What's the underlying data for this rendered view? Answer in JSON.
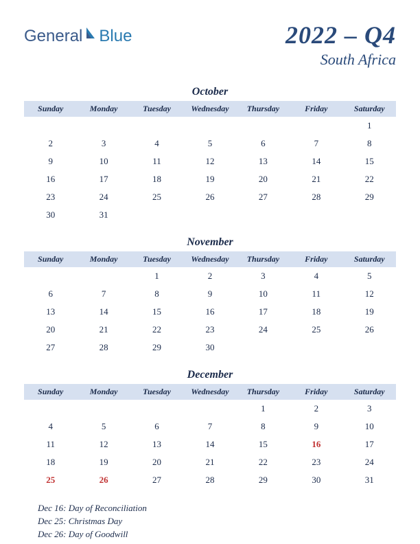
{
  "logo": {
    "part1": "General",
    "part2": "Blue"
  },
  "title": {
    "quarter": "2022 – Q4",
    "country": "South Africa"
  },
  "colors": {
    "header_bg": "#d6e0f0",
    "text": "#1a2a4a",
    "title": "#2a4a7a",
    "holiday": "#c03030",
    "logo1": "#3a5a8a",
    "logo2": "#2a7ab0"
  },
  "dayHeaders": [
    "Sunday",
    "Monday",
    "Tuesday",
    "Wednesday",
    "Thursday",
    "Friday",
    "Saturday"
  ],
  "months": [
    {
      "name": "October",
      "weeks": [
        [
          "",
          "",
          "",
          "",
          "",
          "",
          "1"
        ],
        [
          "2",
          "3",
          "4",
          "5",
          "6",
          "7",
          "8"
        ],
        [
          "9",
          "10",
          "11",
          "12",
          "13",
          "14",
          "15"
        ],
        [
          "16",
          "17",
          "18",
          "19",
          "20",
          "21",
          "22"
        ],
        [
          "23",
          "24",
          "25",
          "26",
          "27",
          "28",
          "29"
        ],
        [
          "30",
          "31",
          "",
          "",
          "",
          "",
          ""
        ]
      ],
      "holidays": []
    },
    {
      "name": "November",
      "weeks": [
        [
          "",
          "",
          "1",
          "2",
          "3",
          "4",
          "5"
        ],
        [
          "6",
          "7",
          "8",
          "9",
          "10",
          "11",
          "12"
        ],
        [
          "13",
          "14",
          "15",
          "16",
          "17",
          "18",
          "19"
        ],
        [
          "20",
          "21",
          "22",
          "23",
          "24",
          "25",
          "26"
        ],
        [
          "27",
          "28",
          "29",
          "30",
          "",
          "",
          ""
        ]
      ],
      "holidays": []
    },
    {
      "name": "December",
      "weeks": [
        [
          "",
          "",
          "",
          "",
          "1",
          "2",
          "3"
        ],
        [
          "4",
          "5",
          "6",
          "7",
          "8",
          "9",
          "10"
        ],
        [
          "11",
          "12",
          "13",
          "14",
          "15",
          "16",
          "17"
        ],
        [
          "18",
          "19",
          "20",
          "21",
          "22",
          "23",
          "24"
        ],
        [
          "25",
          "26",
          "27",
          "28",
          "29",
          "30",
          "31"
        ]
      ],
      "holidays": [
        "16",
        "25",
        "26"
      ]
    }
  ],
  "holidayList": [
    "Dec 16: Day of Reconciliation",
    "Dec 25: Christmas Day",
    "Dec 26: Day of Goodwill"
  ]
}
